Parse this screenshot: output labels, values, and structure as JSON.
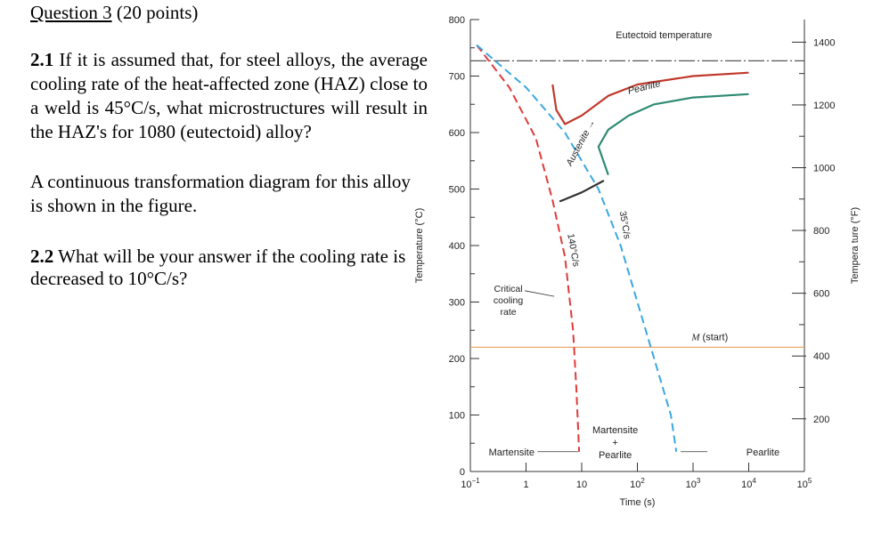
{
  "question": {
    "title_underlined": "Question 3",
    "title_rest": " (20 points)",
    "q21_num": "2.1",
    "q21_text": " If it is assumed that, for steel alloys, the average cooling rate of the heat-affected zone (HAZ) close to a weld is 45°C/s, what microstructures will result in the HAZ's for 1080 (eutectoid) alloy?",
    "q21_followup": "A continuous transformation diagram for this alloy is shown in the figure.",
    "q22_num": "2.2",
    "q22_text": " What will be your answer if the cooling rate is decreased to 10°C/s?"
  },
  "chart_data": {
    "type": "line",
    "xlabel": "Time (s)",
    "ylabel": "Temperature (°C)",
    "ylabel_right": "Tempera ture (°F)",
    "x_scale": "log",
    "xlim": [
      0.1,
      100000
    ],
    "ylim": [
      0,
      800
    ],
    "x_tick_labels": [
      {
        "v": 0.1,
        "base": "10",
        "exp": "−1"
      },
      {
        "v": 1,
        "base": "1",
        "exp": ""
      },
      {
        "v": 10,
        "base": "10",
        "exp": ""
      },
      {
        "v": 100,
        "base": "10",
        "exp": "2"
      },
      {
        "v": 1000,
        "base": "10",
        "exp": "3"
      },
      {
        "v": 10000,
        "base": "10",
        "exp": "4"
      },
      {
        "v": 100000,
        "base": "10",
        "exp": "5"
      }
    ],
    "y_ticks_left": [
      "0",
      "100",
      "200",
      "300",
      "400",
      "500",
      "600",
      "700",
      "800"
    ],
    "y_ticks_right": [
      {
        "degC": 93.3,
        "label": "200"
      },
      {
        "degC": 204.4,
        "label": "400"
      },
      {
        "degC": 315.6,
        "label": "600"
      },
      {
        "degC": 426.7,
        "label": "800"
      },
      {
        "degC": 537.8,
        "label": "1000"
      },
      {
        "degC": 648.9,
        "label": "1200"
      },
      {
        "degC": 760,
        "label": "1400"
      }
    ],
    "eutectoid_temperature": 727,
    "martensite_start": 220,
    "labels": {
      "eutectoid": "Eutectoid temperature",
      "pearlite_top": "Pearlite",
      "austenite_arrow": "Austenite →",
      "rate_140": "140°C/s",
      "rate_35": "35°C/s",
      "critical": [
        "Critical",
        "cooling",
        "rate"
      ],
      "m_start_italic": "M",
      "m_start_rest": " (start)",
      "martensite": "Martensite",
      "martensite_pearlite": [
        "Martensite",
        "+",
        "Pearlite"
      ],
      "pearlite_bottom": "Pearlite"
    },
    "series": [
      {
        "color": "#c0392b",
        "points": [
          [
            3.0,
            685
          ],
          [
            3.5,
            640
          ],
          [
            5,
            615
          ],
          [
            10,
            630
          ],
          [
            30,
            665
          ],
          [
            100,
            685
          ],
          [
            1000,
            700
          ],
          [
            10000,
            706
          ]
        ]
      },
      {
        "color": "#2e8b74",
        "points": [
          [
            30,
            525
          ],
          [
            20,
            575
          ],
          [
            30,
            605
          ],
          [
            70,
            630
          ],
          [
            200,
            650
          ],
          [
            1000,
            662
          ],
          [
            10000,
            668
          ]
        ]
      },
      {
        "color": "#333333",
        "points": [
          [
            4.0,
            478
          ],
          [
            10,
            494
          ],
          [
            25,
            515
          ]
        ]
      },
      {
        "color": "#e03a3a",
        "dashed": true,
        "points": [
          [
            0.13,
            755
          ],
          [
            0.5,
            680
          ],
          [
            1.5,
            590
          ],
          [
            3,
            480
          ],
          [
            5,
            380
          ],
          [
            7,
            250
          ],
          [
            8,
            150
          ],
          [
            9,
            35
          ]
        ]
      },
      {
        "color": "#3aa7e0",
        "dashed": true,
        "points": [
          [
            0.13,
            755
          ],
          [
            1,
            680
          ],
          [
            5,
            600
          ],
          [
            20,
            500
          ],
          [
            50,
            400
          ],
          [
            100,
            300
          ],
          [
            200,
            200
          ],
          [
            400,
            100
          ],
          [
            500,
            35
          ]
        ]
      }
    ],
    "colors": {
      "eutectoid_line": "#555555",
      "m_start_line": "#e8a05a",
      "axis": "#333333"
    }
  }
}
